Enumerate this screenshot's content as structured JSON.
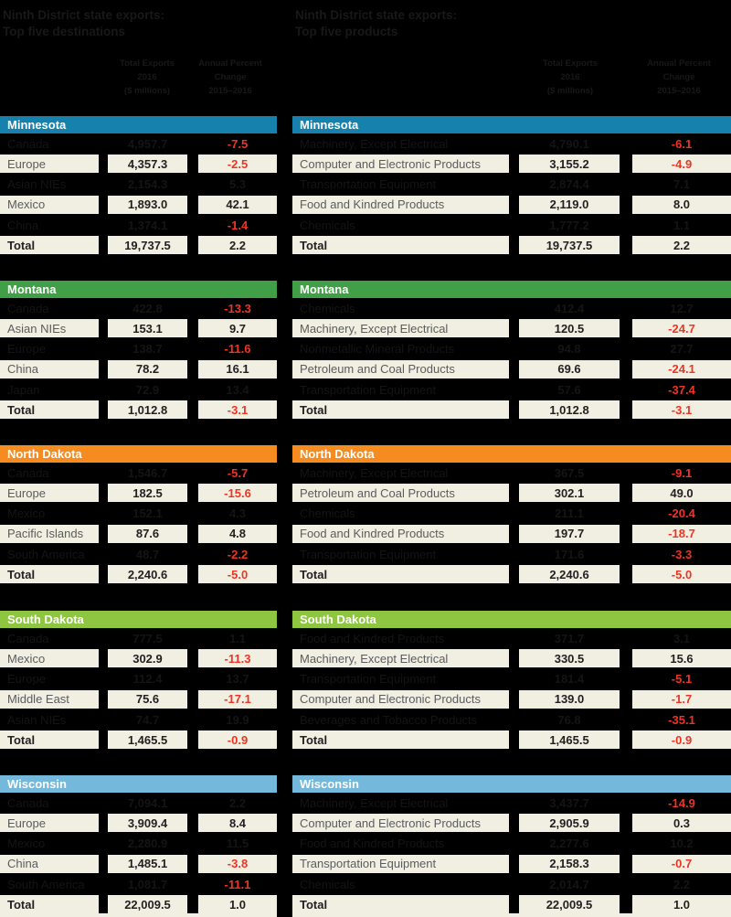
{
  "chart_data": {
    "type": "table",
    "description": "Ninth District state exports: top five destinations and top five products, total exports ($ millions) with annual percent change 2015-2016",
    "tables": [
      {
        "id": "destinations",
        "title_lines": [
          "Ninth District state exports:",
          "Top five destinations"
        ],
        "value_header_lines": [
          "Total Exports",
          "2016",
          "($ millions)"
        ],
        "pct_header_lines": [
          "Annual Percent",
          "Change",
          "2015–2016"
        ],
        "states": [
          {
            "name": "Minnesota",
            "color": "#1581ac",
            "rows": [
              {
                "label": "Canada",
                "value": "4,957.7",
                "pct": "-7.5"
              },
              {
                "label": "Europe",
                "value": "4,357.3",
                "pct": "-2.5"
              },
              {
                "label": "Asian NIEs",
                "value": "2,154.3",
                "pct": "5.3"
              },
              {
                "label": "Mexico",
                "value": "1,893.0",
                "pct": "42.1"
              },
              {
                "label": "China",
                "value": "1,374.1",
                "pct": "-1.4"
              },
              {
                "label": "Total",
                "value": "19,737.5",
                "pct": "2.2"
              }
            ]
          },
          {
            "name": "Montana",
            "color": "#41a047",
            "rows": [
              {
                "label": "Canada",
                "value": "422.8",
                "pct": "-13.3"
              },
              {
                "label": "Asian NIEs",
                "value": "153.1",
                "pct": "9.7"
              },
              {
                "label": "Europe",
                "value": "138.7",
                "pct": "-11.6"
              },
              {
                "label": "China",
                "value": "78.2",
                "pct": "16.1"
              },
              {
                "label": "Japan",
                "value": "72.9",
                "pct": "13.4"
              },
              {
                "label": "Total",
                "value": "1,012.8",
                "pct": "-3.1"
              }
            ]
          },
          {
            "name": "North Dakota",
            "color": "#f68b1f",
            "rows": [
              {
                "label": "Canada",
                "value": "1,546.7",
                "pct": "-5.7"
              },
              {
                "label": "Europe",
                "value": "182.5",
                "pct": "-15.6"
              },
              {
                "label": "Mexico",
                "value": "152.1",
                "pct": "4.3"
              },
              {
                "label": "Pacific Islands",
                "value": "87.6",
                "pct": "4.8"
              },
              {
                "label": "South America",
                "value": "48.7",
                "pct": "-2.2"
              },
              {
                "label": "Total",
                "value": "2,240.6",
                "pct": "-5.0"
              }
            ]
          },
          {
            "name": "South Dakota",
            "color": "#8ec541",
            "rows": [
              {
                "label": "Canada",
                "value": "777.5",
                "pct": "1.1"
              },
              {
                "label": "Mexico",
                "value": "302.9",
                "pct": "-11.3"
              },
              {
                "label": "Europe",
                "value": "112.4",
                "pct": "13.7"
              },
              {
                "label": "Middle East",
                "value": "75.6",
                "pct": "-17.1"
              },
              {
                "label": "Asian NIEs",
                "value": "74.7",
                "pct": "19.9"
              },
              {
                "label": "Total",
                "value": "1,465.5",
                "pct": "-0.9"
              }
            ]
          },
          {
            "name": "Wisconsin",
            "color": "#74b8db",
            "rows": [
              {
                "label": "Canada",
                "value": "7,094.1",
                "pct": "2.2"
              },
              {
                "label": "Europe",
                "value": "3,909.4",
                "pct": "8.4"
              },
              {
                "label": "Mexico",
                "value": "2,280.9",
                "pct": "11.5"
              },
              {
                "label": "China",
                "value": "1,485.1",
                "pct": "-3.8"
              },
              {
                "label": "South America",
                "value": "1,081.7",
                "pct": "-11.1"
              },
              {
                "label": "Total",
                "value": "22,009.5",
                "pct": "1.0"
              }
            ]
          }
        ]
      },
      {
        "id": "products",
        "title_lines": [
          "Ninth District state exports:",
          "Top five products"
        ],
        "value_header_lines": [
          "Total Exports",
          "2016",
          "($ millions)"
        ],
        "pct_header_lines": [
          "Annual Percent",
          "Change",
          "2015–2016"
        ],
        "states": [
          {
            "name": "Minnesota",
            "color": "#1581ac",
            "rows": [
              {
                "label": "Machinery, Except Electrical",
                "value": "4,790.1",
                "pct": "-6.1"
              },
              {
                "label": "Computer and Electronic Products",
                "value": "3,155.2",
                "pct": "-4.9"
              },
              {
                "label": "Transportation Equipment",
                "value": "2,874.4",
                "pct": "7.1"
              },
              {
                "label": "Food and Kindred Products",
                "value": "2,119.0",
                "pct": "8.0"
              },
              {
                "label": "Chemicals",
                "value": "1,777.2",
                "pct": "1.1"
              },
              {
                "label": "Total",
                "value": "19,737.5",
                "pct": "2.2"
              }
            ]
          },
          {
            "name": "Montana",
            "color": "#41a047",
            "rows": [
              {
                "label": "Chemicals",
                "value": "412.4",
                "pct": "12.7"
              },
              {
                "label": "Machinery, Except Electrical",
                "value": "120.5",
                "pct": "-24.7"
              },
              {
                "label": "Nonmetallic Mineral Products",
                "value": "94.8",
                "pct": "27.7"
              },
              {
                "label": "Petroleum and Coal Products",
                "value": "69.6",
                "pct": "-24.1"
              },
              {
                "label": "Transportation Equipment",
                "value": "57.6",
                "pct": "-37.4"
              },
              {
                "label": "Total",
                "value": "1,012.8",
                "pct": "-3.1"
              }
            ]
          },
          {
            "name": "North Dakota",
            "color": "#f68b1f",
            "rows": [
              {
                "label": "Machinery, Except Electrical",
                "value": "367.5",
                "pct": "-9.1"
              },
              {
                "label": "Petroleum and Coal Products",
                "value": "302.1",
                "pct": "49.0"
              },
              {
                "label": "Chemicals",
                "value": "211.1",
                "pct": "-20.4"
              },
              {
                "label": "Food and Kindred Products",
                "value": "197.7",
                "pct": "-18.7"
              },
              {
                "label": "Transportation Equipment",
                "value": "171.6",
                "pct": "-3.3"
              },
              {
                "label": "Total",
                "value": "2,240.6",
                "pct": "-5.0"
              }
            ]
          },
          {
            "name": "South Dakota",
            "color": "#8ec541",
            "rows": [
              {
                "label": "Food and Kindred Products",
                "value": "371.7",
                "pct": "3.1"
              },
              {
                "label": "Machinery, Except Electrical",
                "value": "330.5",
                "pct": "15.6"
              },
              {
                "label": "Transportation Equipment",
                "value": "181.4",
                "pct": "-5.1"
              },
              {
                "label": "Computer and Electronic Products",
                "value": "139.0",
                "pct": "-1.7"
              },
              {
                "label": "Beverages and Tobacco Products",
                "value": "76.8",
                "pct": "-35.1"
              },
              {
                "label": "Total",
                "value": "1,465.5",
                "pct": "-0.9"
              }
            ]
          },
          {
            "name": "Wisconsin",
            "color": "#74b8db",
            "rows": [
              {
                "label": "Machinery, Except Electrical",
                "value": "3,437.7",
                "pct": "-14.9"
              },
              {
                "label": "Computer and Electronic Products",
                "value": "2,905.9",
                "pct": "0.3"
              },
              {
                "label": "Food and Kindred Products",
                "value": "2,277.6",
                "pct": "10.2"
              },
              {
                "label": "Transportation Equipment",
                "value": "2,158.3",
                "pct": "-0.7"
              },
              {
                "label": "Chemicals",
                "value": "2,014.7",
                "pct": "2.2"
              },
              {
                "label": "Total",
                "value": "22,009.5",
                "pct": "1.0"
              }
            ]
          }
        ]
      }
    ]
  },
  "colors": {
    "background": "#000000",
    "row_fill": "#f0efe1",
    "negative_red": "#ee3524",
    "value_text": "#231f20",
    "label_text": "#5b5c5e",
    "band_text": "#ffffff",
    "minnesota_band": "#1581ac",
    "montana_band": "#41a047",
    "north_dakota_band": "#f68b1f",
    "south_dakota_band": "#8ec541",
    "wisconsin_band": "#74b8db"
  }
}
